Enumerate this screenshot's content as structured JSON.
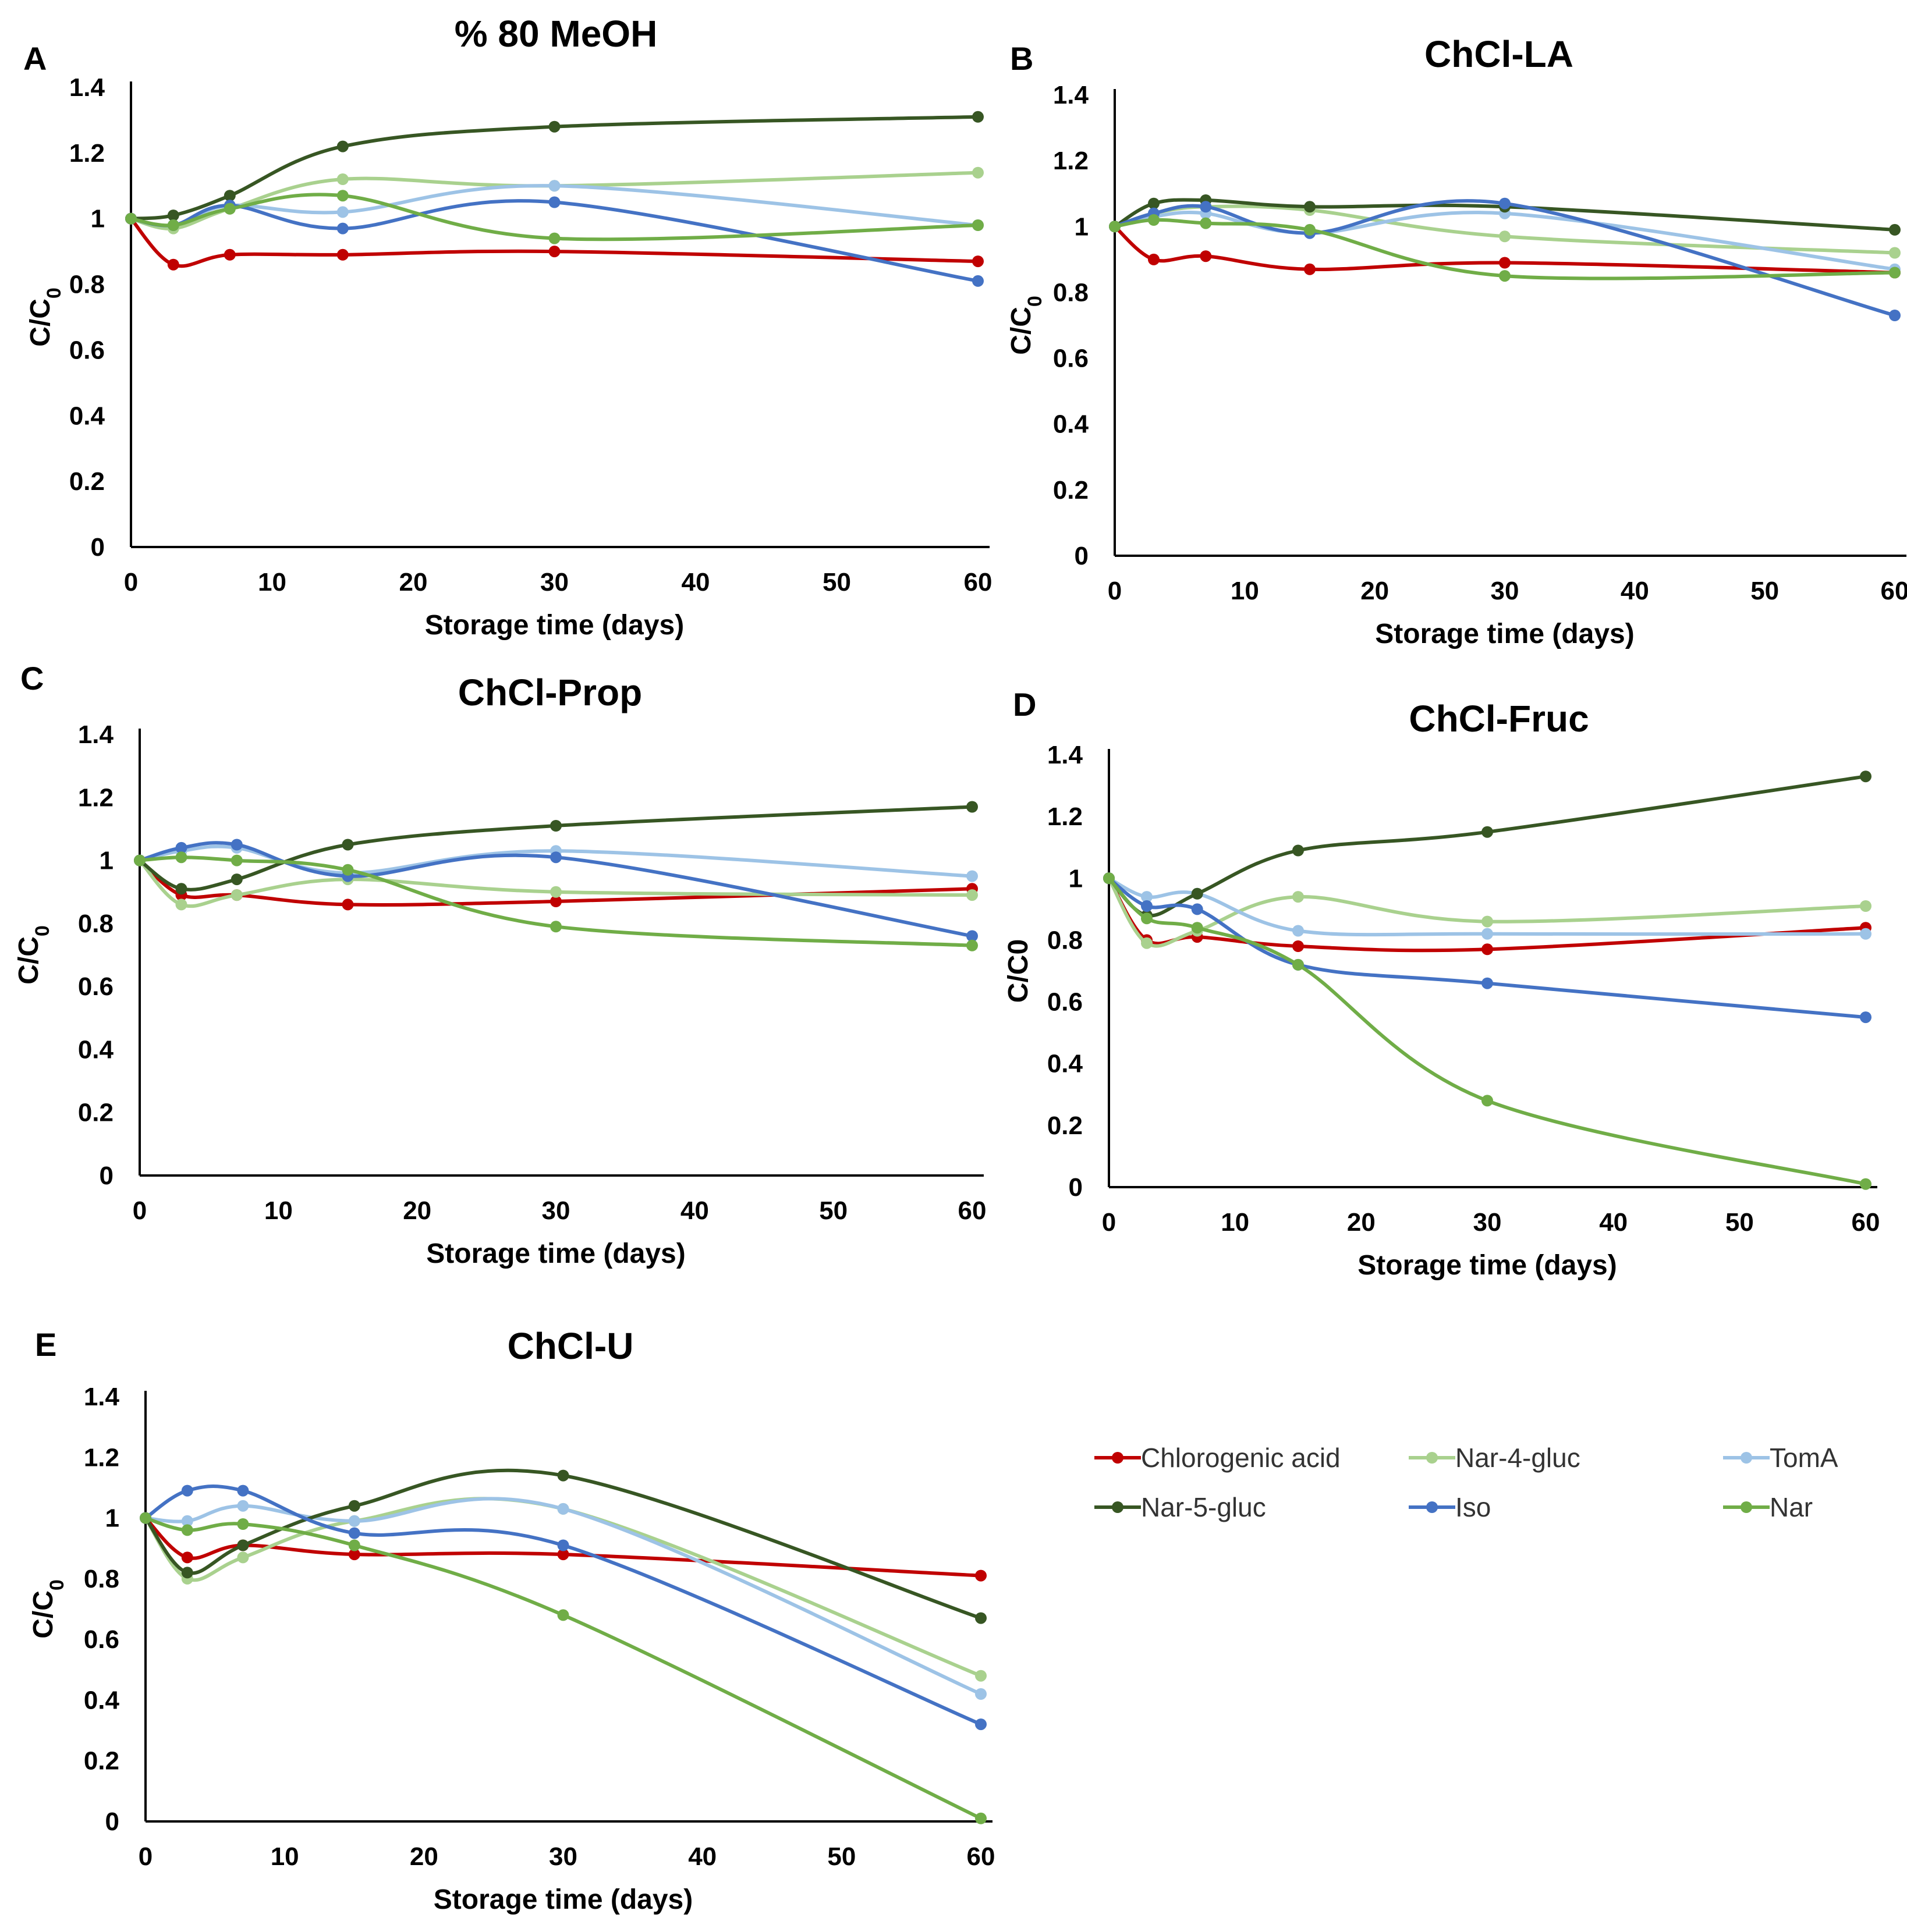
{
  "figure": {
    "legend": [
      {
        "name": "Chlorogenic acid",
        "color": "#c00000"
      },
      {
        "name": "Nar-4-gluc",
        "color": "#a9d18e"
      },
      {
        "name": "TomA",
        "color": "#9dc3e6"
      },
      {
        "name": "Nar-5-gluc",
        "color": "#375623"
      },
      {
        "name": "Iso",
        "color": "#4472c4"
      },
      {
        "name": "Nar",
        "color": "#70ad47"
      }
    ]
  },
  "chart_data": [
    {
      "panel": "A",
      "title": "% 80 MeOH",
      "type": "line",
      "xlabel": "Storage time (days)",
      "ylabel": "C/C0",
      "ylabel_main": "C/C",
      "ylabel_sub": "0",
      "xlim": [
        0,
        60
      ],
      "ylim": [
        0,
        1.4
      ],
      "x_ticks": [
        "0",
        "10",
        "20",
        "30",
        "40",
        "50",
        "60"
      ],
      "y_ticks": [
        "0",
        "0.2",
        "0.4",
        "0.6",
        "0.8",
        "1",
        "1.2",
        "1.4"
      ],
      "x": [
        0,
        3,
        7,
        15,
        30,
        60
      ],
      "series": [
        {
          "name": "Chlorogenic acid",
          "color": "#c00000",
          "values": [
            1.0,
            0.86,
            0.89,
            0.89,
            0.9,
            0.87
          ]
        },
        {
          "name": "Nar-4-gluc",
          "color": "#a9d18e",
          "values": [
            1.0,
            0.97,
            1.03,
            1.12,
            1.1,
            1.14
          ]
        },
        {
          "name": "TomA",
          "color": "#9dc3e6",
          "values": [
            1.0,
            0.98,
            1.04,
            1.02,
            1.1,
            0.98
          ]
        },
        {
          "name": "Nar-5-gluc",
          "color": "#375623",
          "values": [
            1.0,
            1.01,
            1.07,
            1.22,
            1.28,
            1.31
          ]
        },
        {
          "name": "Iso",
          "color": "#4472c4",
          "values": [
            1.0,
            0.98,
            1.04,
            0.97,
            1.05,
            0.81
          ]
        },
        {
          "name": "Nar",
          "color": "#70ad47",
          "values": [
            1.0,
            0.98,
            1.03,
            1.07,
            0.94,
            0.98
          ]
        }
      ]
    },
    {
      "panel": "B",
      "title": "ChCl-LA",
      "type": "line",
      "xlabel": "Storage time (days)",
      "ylabel": "C/C0",
      "ylabel_main": "C/C",
      "ylabel_sub": "0",
      "xlim": [
        0,
        60
      ],
      "ylim": [
        0,
        1.4
      ],
      "x_ticks": [
        "0",
        "10",
        "20",
        "30",
        "40",
        "50",
        "60"
      ],
      "y_ticks": [
        "0",
        "0.2",
        "0.4",
        "0.6",
        "0.8",
        "1",
        "1.2",
        "1.4"
      ],
      "x": [
        0,
        3,
        7,
        15,
        30,
        60
      ],
      "series": [
        {
          "name": "Chlorogenic acid",
          "color": "#c00000",
          "values": [
            1.0,
            0.9,
            0.91,
            0.87,
            0.89,
            0.86
          ]
        },
        {
          "name": "Nar-4-gluc",
          "color": "#a9d18e",
          "values": [
            1.0,
            1.04,
            1.06,
            1.05,
            0.97,
            0.92
          ]
        },
        {
          "name": "TomA",
          "color": "#9dc3e6",
          "values": [
            1.0,
            1.03,
            1.04,
            0.98,
            1.04,
            0.87
          ]
        },
        {
          "name": "Nar-5-gluc",
          "color": "#375623",
          "values": [
            1.0,
            1.07,
            1.08,
            1.06,
            1.06,
            0.99
          ]
        },
        {
          "name": "Iso",
          "color": "#4472c4",
          "values": [
            1.0,
            1.04,
            1.06,
            0.98,
            1.07,
            0.73
          ]
        },
        {
          "name": "Nar",
          "color": "#70ad47",
          "values": [
            1.0,
            1.02,
            1.01,
            0.99,
            0.85,
            0.86
          ]
        }
      ]
    },
    {
      "panel": "C",
      "title": "ChCl-Prop",
      "type": "line",
      "xlabel": "Storage time (days)",
      "ylabel": "C/C0",
      "ylabel_main": "C/C",
      "ylabel_sub": "0",
      "xlim": [
        0,
        60
      ],
      "ylim": [
        0,
        1.4
      ],
      "x_ticks": [
        "0",
        "10",
        "20",
        "30",
        "40",
        "50",
        "60"
      ],
      "y_ticks": [
        "0",
        "0.2",
        "0.4",
        "0.6",
        "0.8",
        "1",
        "1.2",
        "1.4"
      ],
      "x": [
        0,
        3,
        7,
        15,
        30,
        60
      ],
      "series": [
        {
          "name": "Chlorogenic acid",
          "color": "#c00000",
          "values": [
            1.0,
            0.89,
            0.89,
            0.86,
            0.87,
            0.91
          ]
        },
        {
          "name": "Nar-4-gluc",
          "color": "#a9d18e",
          "values": [
            1.0,
            0.86,
            0.89,
            0.94,
            0.9,
            0.89
          ]
        },
        {
          "name": "TomA",
          "color": "#9dc3e6",
          "values": [
            1.0,
            1.03,
            1.04,
            0.96,
            1.03,
            0.95
          ]
        },
        {
          "name": "Nar-5-gluc",
          "color": "#375623",
          "values": [
            1.0,
            0.91,
            0.94,
            1.05,
            1.11,
            1.17
          ]
        },
        {
          "name": "Iso",
          "color": "#4472c4",
          "values": [
            1.0,
            1.04,
            1.05,
            0.95,
            1.01,
            0.76
          ]
        },
        {
          "name": "Nar",
          "color": "#70ad47",
          "values": [
            1.0,
            1.01,
            1.0,
            0.97,
            0.79,
            0.73
          ]
        }
      ]
    },
    {
      "panel": "D",
      "title": "ChCl-Fruc",
      "type": "line",
      "xlabel": "Storage time (days)",
      "ylabel": "C/C0",
      "ylabel_main": "C/C0",
      "ylabel_sub": "",
      "xlim": [
        0,
        60
      ],
      "ylim": [
        0,
        1.4
      ],
      "x_ticks": [
        "0",
        "10",
        "20",
        "30",
        "40",
        "50",
        "60"
      ],
      "y_ticks": [
        "0",
        "0.2",
        "0.4",
        "0.6",
        "0.8",
        "1",
        "1.2",
        "1.4"
      ],
      "x": [
        0,
        3,
        7,
        15,
        30,
        60
      ],
      "series": [
        {
          "name": "Chlorogenic acid",
          "color": "#c00000",
          "values": [
            1.0,
            0.8,
            0.81,
            0.78,
            0.77,
            0.84
          ]
        },
        {
          "name": "Nar-4-gluc",
          "color": "#a9d18e",
          "values": [
            1.0,
            0.79,
            0.83,
            0.94,
            0.86,
            0.91
          ]
        },
        {
          "name": "TomA",
          "color": "#9dc3e6",
          "values": [
            1.0,
            0.94,
            0.95,
            0.83,
            0.82,
            0.82
          ]
        },
        {
          "name": "Nar-5-gluc",
          "color": "#375623",
          "values": [
            1.0,
            0.88,
            0.95,
            1.09,
            1.15,
            1.33
          ]
        },
        {
          "name": "Iso",
          "color": "#4472c4",
          "values": [
            1.0,
            0.91,
            0.9,
            0.72,
            0.66,
            0.55
          ]
        },
        {
          "name": "Nar",
          "color": "#70ad47",
          "values": [
            1.0,
            0.87,
            0.84,
            0.72,
            0.28,
            0.01
          ]
        }
      ]
    },
    {
      "panel": "E",
      "title": "ChCl-U",
      "type": "line",
      "xlabel": "Storage time (days)",
      "ylabel": "C/C0",
      "ylabel_main": "C/C",
      "ylabel_sub": "0",
      "xlim": [
        0,
        60
      ],
      "ylim": [
        0,
        1.4
      ],
      "x_ticks": [
        "0",
        "10",
        "20",
        "30",
        "40",
        "50",
        "60"
      ],
      "y_ticks": [
        "0",
        "0.2",
        "0.4",
        "0.6",
        "0.8",
        "1",
        "1.2",
        "1.4"
      ],
      "x": [
        0,
        3,
        7,
        15,
        30,
        60
      ],
      "series": [
        {
          "name": "Chlorogenic acid",
          "color": "#c00000",
          "values": [
            1.0,
            0.87,
            0.91,
            0.88,
            0.88,
            0.81
          ]
        },
        {
          "name": "Nar-4-gluc",
          "color": "#a9d18e",
          "values": [
            1.0,
            0.8,
            0.87,
            0.99,
            1.03,
            0.48
          ]
        },
        {
          "name": "TomA",
          "color": "#9dc3e6",
          "values": [
            1.0,
            0.99,
            1.04,
            0.99,
            1.03,
            0.42
          ]
        },
        {
          "name": "Nar-5-gluc",
          "color": "#375623",
          "values": [
            1.0,
            0.82,
            0.91,
            1.04,
            1.14,
            0.67
          ]
        },
        {
          "name": "Iso",
          "color": "#4472c4",
          "values": [
            1.0,
            1.09,
            1.09,
            0.95,
            0.91,
            0.32
          ]
        },
        {
          "name": "Nar",
          "color": "#70ad47",
          "values": [
            1.0,
            0.96,
            0.98,
            0.91,
            0.68,
            0.01
          ]
        }
      ]
    }
  ]
}
